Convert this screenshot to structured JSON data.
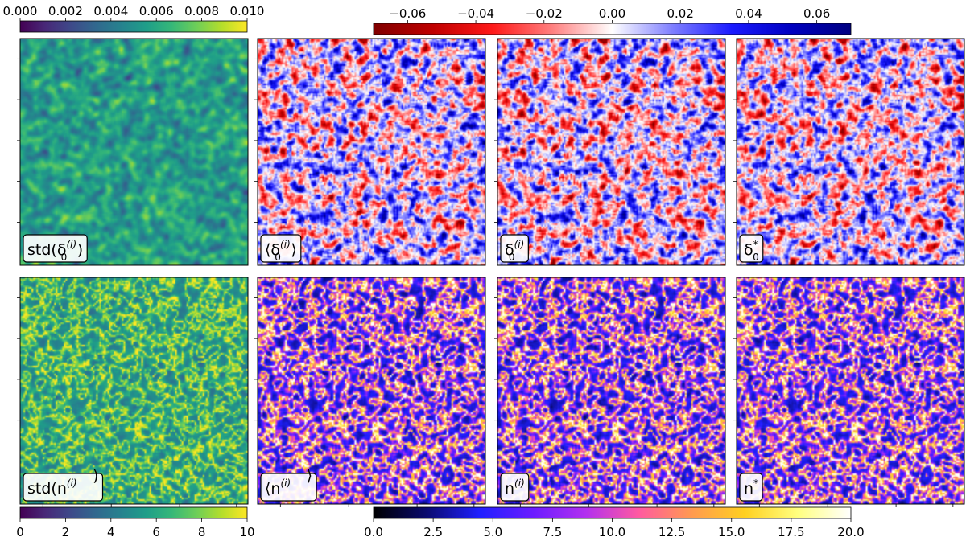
{
  "chart_data": {
    "type": "heatmap",
    "layout": {
      "rows": 2,
      "cols": 4
    },
    "colorbars": [
      {
        "id": "std_delta",
        "cmap": "viridis",
        "range": [
          0.0,
          0.01
        ],
        "ticks": [
          "0.000",
          "0.002",
          "0.004",
          "0.006",
          "0.008",
          "0.010"
        ],
        "placement": "top-left"
      },
      {
        "id": "delta",
        "cmap": "seismic_r",
        "range": [
          -0.07,
          0.07
        ],
        "ticks": [
          "−0.06",
          "−0.04",
          "−0.02",
          "0.00",
          "0.02",
          "0.04",
          "0.06"
        ],
        "placement": "top-right"
      },
      {
        "id": "std_n",
        "cmap": "viridis",
        "range": [
          0,
          10
        ],
        "ticks": [
          "0",
          "2",
          "4",
          "6",
          "8",
          "10"
        ],
        "placement": "bottom-left"
      },
      {
        "id": "n",
        "cmap": "gnuplot2",
        "range": [
          0,
          20
        ],
        "ticks": [
          "0.0",
          "2.5",
          "5.0",
          "7.5",
          "10.0",
          "12.5",
          "15.0",
          "17.5",
          "20.0"
        ],
        "placement": "bottom-right"
      }
    ],
    "panels": [
      {
        "row": 0,
        "col": 0,
        "colorbar": "std_delta",
        "field": "std",
        "base": "std(δ",
        "sub": "0",
        "sup": "(i)",
        "tail": ")"
      },
      {
        "row": 0,
        "col": 1,
        "colorbar": "delta",
        "field": "signed",
        "base": "⟨δ",
        "sub": "0",
        "sup": "(i)",
        "tail": "⟩"
      },
      {
        "row": 0,
        "col": 2,
        "colorbar": "delta",
        "field": "signed",
        "base": "δ",
        "sub": "0",
        "sup": "(i)",
        "tail": ""
      },
      {
        "row": 0,
        "col": 3,
        "colorbar": "delta",
        "field": "signed",
        "base": "δ",
        "sub": "0",
        "sup": "*",
        "tail": ""
      },
      {
        "row": 1,
        "col": 0,
        "colorbar": "std_n",
        "field": "web",
        "base": "std(n",
        "sub": "",
        "sup": "(i)",
        "tail": ")"
      },
      {
        "row": 1,
        "col": 1,
        "colorbar": "n",
        "field": "web",
        "base": "⟨n",
        "sub": "",
        "sup": "(i)",
        "tail": "⟩"
      },
      {
        "row": 1,
        "col": 2,
        "colorbar": "n",
        "field": "web",
        "base": "n",
        "sub": "",
        "sup": "(i)",
        "tail": ""
      },
      {
        "row": 1,
        "col": 3,
        "colorbar": "n",
        "field": "web",
        "base": "n",
        "sub": "",
        "sup": "*",
        "tail": ""
      }
    ]
  }
}
